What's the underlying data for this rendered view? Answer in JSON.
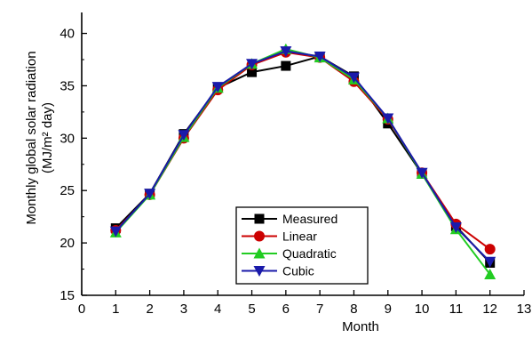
{
  "chart_data": {
    "type": "line",
    "title": "",
    "xlabel": "Month",
    "ylabel_line1": "Monthly global solar radiation",
    "ylabel_line2": "(MJ/m² day)",
    "xlim": [
      0,
      13
    ],
    "ylim": [
      15,
      42
    ],
    "xticks": [
      0,
      1,
      2,
      3,
      4,
      5,
      6,
      7,
      8,
      9,
      10,
      11,
      12,
      13
    ],
    "yticks": [
      15,
      20,
      25,
      30,
      35,
      40
    ],
    "grid": false,
    "legend_position": "bottom-center",
    "x": [
      1,
      2,
      3,
      4,
      5,
      6,
      7,
      8,
      9,
      10,
      11,
      12
    ],
    "series": [
      {
        "name": "Measured",
        "color": "#000000",
        "marker": "square",
        "values": [
          21.4,
          24.7,
          30.4,
          34.8,
          36.3,
          36.9,
          37.8,
          35.9,
          31.4,
          26.6,
          21.6,
          18.1
        ]
      },
      {
        "name": "Linear",
        "color": "#cc0000",
        "marker": "circle",
        "values": [
          21.2,
          24.6,
          30.0,
          34.6,
          37.0,
          38.2,
          37.7,
          35.4,
          31.8,
          26.7,
          21.8,
          19.4
        ]
      },
      {
        "name": "Quadratic",
        "color": "#22cc22",
        "marker": "triangle-up",
        "values": [
          21.0,
          24.6,
          30.1,
          34.8,
          37.1,
          38.5,
          37.7,
          35.6,
          31.9,
          26.6,
          21.3,
          17.0
        ]
      },
      {
        "name": "Cubic",
        "color": "#1a1aaa",
        "marker": "triangle-down",
        "values": [
          21.1,
          24.7,
          30.3,
          34.9,
          37.1,
          38.3,
          37.8,
          35.8,
          31.9,
          26.7,
          21.5,
          18.2
        ]
      }
    ]
  }
}
